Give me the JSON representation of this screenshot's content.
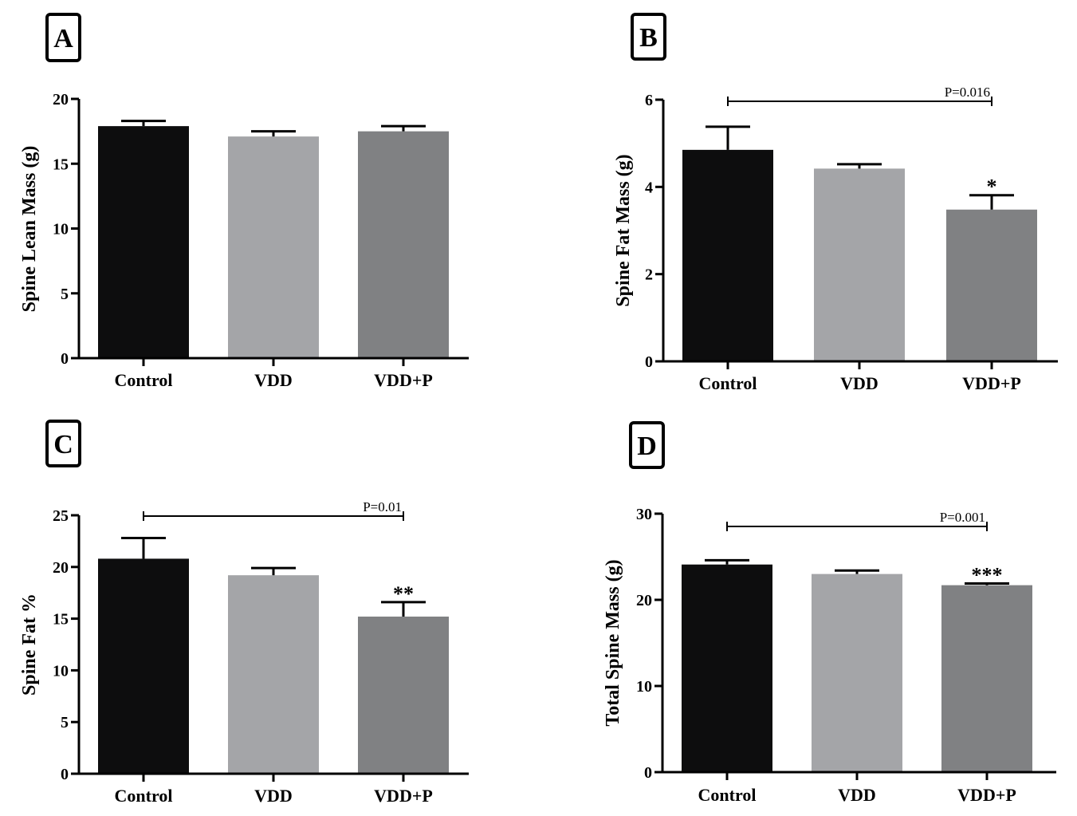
{
  "colors": {
    "control": "#0d0d0e",
    "vdd": "#a4a5a8",
    "vddp": "#808183",
    "axis": "#000000"
  },
  "chart_data": [
    {
      "panel": "A",
      "type": "bar",
      "categories": [
        "Control",
        "VDD",
        "VDD+P"
      ],
      "values": [
        17.9,
        17.1,
        17.5
      ],
      "errors": [
        0.4,
        0.4,
        0.4
      ],
      "ylabel": "Spine Lean Mass (g)",
      "ylim": [
        0,
        20
      ],
      "yticks": [
        "0",
        "5",
        "10",
        "15",
        "20"
      ],
      "significance": null,
      "stars": [
        "",
        "",
        ""
      ]
    },
    {
      "panel": "B",
      "type": "bar",
      "categories": [
        "Control",
        "VDD",
        "VDD+P"
      ],
      "values": [
        4.85,
        4.42,
        3.48
      ],
      "errors": [
        0.53,
        0.1,
        0.33
      ],
      "ylabel": "Spine Fat Mass (g)",
      "ylim": [
        0,
        6
      ],
      "yticks": [
        "0",
        "2",
        "4",
        "6"
      ],
      "significance": {
        "label": "P=0.016",
        "from": 0,
        "to": 2
      },
      "stars": [
        "",
        "",
        "*"
      ]
    },
    {
      "panel": "C",
      "type": "bar",
      "categories": [
        "Control",
        "VDD",
        "VDD+P"
      ],
      "values": [
        20.8,
        19.2,
        15.2
      ],
      "errors": [
        2.0,
        0.7,
        1.4
      ],
      "ylabel": "Spine Fat %",
      "ylim": [
        0,
        25
      ],
      "yticks": [
        "0",
        "5",
        "10",
        "15",
        "20",
        "25"
      ],
      "significance": {
        "label": "P=0.01",
        "from": 0,
        "to": 2
      },
      "stars": [
        "",
        "",
        "**"
      ]
    },
    {
      "panel": "D",
      "type": "bar",
      "categories": [
        "Control",
        "VDD",
        "VDD+P"
      ],
      "values": [
        24.1,
        23.0,
        21.7
      ],
      "errors": [
        0.5,
        0.4,
        0.2
      ],
      "ylabel": "Total Spine Mass (g)",
      "ylim": [
        0,
        30
      ],
      "yticks": [
        "0",
        "10",
        "20",
        "30"
      ],
      "significance": {
        "label": "P=0.001",
        "from": 0,
        "to": 2
      },
      "stars": [
        "",
        "",
        "***"
      ]
    }
  ]
}
